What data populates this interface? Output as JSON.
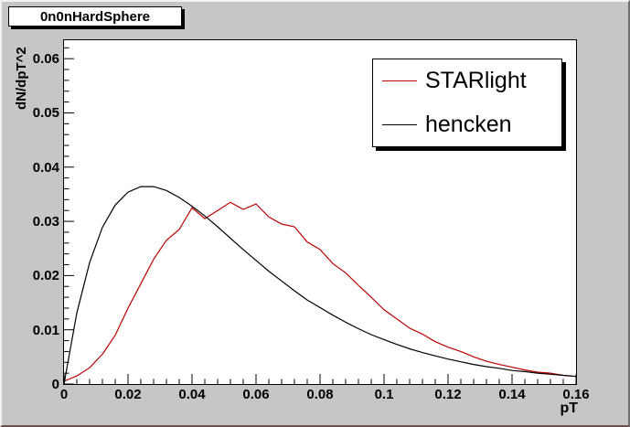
{
  "window": {
    "title": "0n0nHardSphere"
  },
  "chart_data": {
    "type": "line",
    "title": "0n0nHardSphere",
    "xlabel": "pT",
    "ylabel": "dN/dpT^2",
    "xlim": [
      0,
      0.16
    ],
    "ylim": [
      0,
      0.0634
    ],
    "grid": false,
    "legend_position": "top-right",
    "x_ticks": [
      0,
      0.02,
      0.04,
      0.06,
      0.08,
      0.1,
      0.12,
      0.14,
      0.16
    ],
    "x_tick_labels": [
      "0",
      "0.02",
      "0.04",
      "0.06",
      "0.08",
      "0.1",
      "0.12",
      "0.14",
      "0.16"
    ],
    "x_minor_step": 0.004,
    "y_ticks": [
      0,
      0.01,
      0.02,
      0.03,
      0.04,
      0.05,
      0.06
    ],
    "y_tick_labels": [
      "0",
      "0.01",
      "0.02",
      "0.03",
      "0.04",
      "0.05",
      "0.06"
    ],
    "y_minor_step": 0.002,
    "x": [
      0,
      0.004,
      0.008,
      0.012,
      0.016,
      0.02,
      0.024,
      0.028,
      0.032,
      0.036,
      0.04,
      0.044,
      0.048,
      0.052,
      0.056,
      0.06,
      0.064,
      0.068,
      0.072,
      0.076,
      0.08,
      0.084,
      0.088,
      0.092,
      0.096,
      0.1,
      0.104,
      0.108,
      0.112,
      0.116,
      0.12,
      0.124,
      0.128,
      0.132,
      0.136,
      0.14,
      0.144,
      0.148,
      0.152,
      0.156,
      0.16
    ],
    "series": [
      {
        "name": "STARlight",
        "color": "#bb0000",
        "values": [
          0.0005,
          0.0015,
          0.003,
          0.0055,
          0.009,
          0.014,
          0.0185,
          0.023,
          0.0265,
          0.0285,
          0.0325,
          0.0305,
          0.032,
          0.0335,
          0.0322,
          0.0332,
          0.0308,
          0.0295,
          0.029,
          0.0262,
          0.0248,
          0.0222,
          0.0205,
          0.0182,
          0.016,
          0.0137,
          0.012,
          0.0103,
          0.0092,
          0.0078,
          0.0068,
          0.006,
          0.005,
          0.0042,
          0.0036,
          0.0031,
          0.0026,
          0.0022,
          0.002,
          0.0016,
          0.0014
        ]
      },
      {
        "name": "hencken",
        "color": "#000000",
        "values": [
          0,
          0.0131,
          0.0224,
          0.0289,
          0.033,
          0.0354,
          0.0364,
          0.0364,
          0.0357,
          0.0344,
          0.0328,
          0.031,
          0.029,
          0.0269,
          0.0248,
          0.0228,
          0.0208,
          0.019,
          0.0172,
          0.0155,
          0.0141,
          0.0127,
          0.0114,
          0.0102,
          0.0091,
          0.0082,
          0.0073,
          0.0065,
          0.0058,
          0.0052,
          0.0046,
          0.0041,
          0.0036,
          0.0032,
          0.0029,
          0.0025,
          0.0023,
          0.002,
          0.0018,
          0.0016,
          0.0014
        ]
      }
    ]
  },
  "legend": {
    "entries": [
      {
        "label": "STARlight"
      },
      {
        "label": "hencken"
      }
    ]
  }
}
